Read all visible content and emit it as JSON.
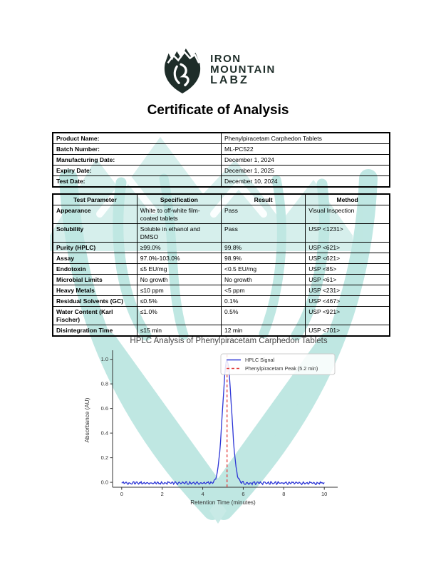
{
  "brand": {
    "line1": "IRON",
    "line2": "MOUNTAIN",
    "line3": "LABZ",
    "color": "#1e2d29"
  },
  "title": "Certificate of Analysis",
  "info_table": {
    "rows": [
      {
        "label": "Product Name:",
        "value": "Phenylpiracetam Carphedon Tablets"
      },
      {
        "label": "Batch Number:",
        "value": "ML-PC522"
      },
      {
        "label": "Manufacturing Date:",
        "value": "December 1, 2024"
      },
      {
        "label": "Expiry Date:",
        "value": "December 1, 2025"
      },
      {
        "label": "Test Date:",
        "value": "December 10, 2024"
      }
    ]
  },
  "results_table": {
    "headers": [
      "Test Parameter",
      "Specification",
      "Result",
      "Method"
    ],
    "rows": [
      [
        "Appearance",
        "White to off-white film-coated tablets",
        "Pass",
        "Visual Inspection"
      ],
      [
        "Solubility",
        "Soluble in ethanol and DMSO",
        "Pass",
        "USP <1231>"
      ],
      [
        "Purity (HPLC)",
        "≥99.0%",
        "99.8%",
        "USP <621>"
      ],
      [
        "Assay",
        "97.0%-103.0%",
        "98.9%",
        "USP <621>"
      ],
      [
        "Endotoxin",
        "≤5 EU/mg",
        "<0.5 EU/mg",
        "USP <85>"
      ],
      [
        "Microbial Limits",
        "No growth",
        "No growth",
        "USP <61>"
      ],
      [
        "Heavy Metals",
        "≤10 ppm",
        "<5 ppm",
        "USP <231>"
      ],
      [
        "Residual Solvents (GC)",
        "≤0.5%",
        "0.1%",
        "USP <467>"
      ],
      [
        "Water Content (Karl Fischer)",
        "≤1.0%",
        "0.5%",
        "USP <921>"
      ],
      [
        "Disintegration Time",
        "≤15 min",
        "12 min",
        "USP <701>"
      ]
    ]
  },
  "chart_data": {
    "type": "line",
    "title": "HPLC Analysis of Phenylpiracetam Carphedon Tablets",
    "xlabel": "Retention Time (minutes)",
    "ylabel": "Absorbance (AU)",
    "x_ticks": [
      0,
      2,
      4,
      6,
      8,
      10
    ],
    "y_ticks": [
      0.0,
      0.2,
      0.4,
      0.6,
      0.8,
      1.0
    ],
    "xlim": [
      -0.45,
      10.45
    ],
    "ylim": [
      -0.04,
      1.05
    ],
    "series": [
      {
        "name": "HPLC Signal",
        "color": "#2c35d6",
        "style": "solid",
        "shape": "gaussian",
        "peak_center": 5.2,
        "peak_height": 1.0,
        "peak_sigma": 0.22,
        "baseline": 0.0,
        "noise_amplitude": 0.006,
        "x_range": [
          0,
          10
        ]
      }
    ],
    "annotations": [
      {
        "name": "Phenylpiracetam Peak (5.2 min)",
        "type": "vline",
        "x": 5.2,
        "color": "#e23b3b",
        "style": "dashed"
      }
    ],
    "legend": {
      "position": "upper right",
      "entries": [
        "HPLC Signal",
        "Phenylpiracetam Peak (5.2 min)"
      ]
    },
    "title_color": "#474747",
    "axis_color": "#333333"
  },
  "watermark": {
    "color": "#b4e3de"
  }
}
